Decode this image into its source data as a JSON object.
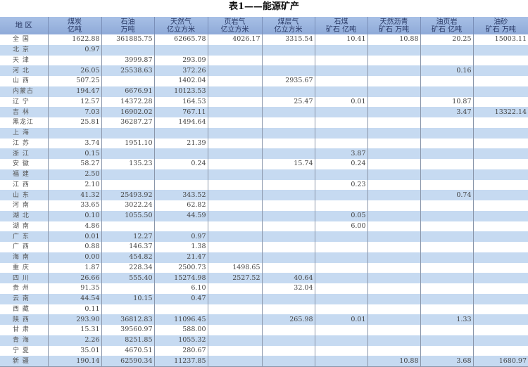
{
  "title": "表1——能源矿产",
  "table": {
    "headers": [
      {
        "line1": "地  区",
        "line2": ""
      },
      {
        "line1": "煤炭",
        "line2": "亿吨"
      },
      {
        "line1": "石油",
        "line2": "万吨"
      },
      {
        "line1": "天然气",
        "line2": "亿立方米"
      },
      {
        "line1": "页岩气",
        "line2": "亿立方米"
      },
      {
        "line1": "煤层气",
        "line2": "亿立方米"
      },
      {
        "line1": "石煤",
        "line2": "矿石 亿吨"
      },
      {
        "line1": "天然沥青",
        "line2": "矿石 万吨"
      },
      {
        "line1": "油页岩",
        "line2": "矿石 亿吨"
      },
      {
        "line1": "油砂",
        "line2": "矿石 万吨"
      }
    ],
    "rows": [
      [
        "全 国",
        "1622.88",
        "361885.75",
        "62665.78",
        "4026.17",
        "3315.54",
        "10.41",
        "10.88",
        "20.25",
        "15003.11"
      ],
      [
        "北 京",
        "0.97",
        "",
        "",
        "",
        "",
        "",
        "",
        "",
        ""
      ],
      [
        "天 津",
        "",
        "3999.87",
        "293.09",
        "",
        "",
        "",
        "",
        "",
        ""
      ],
      [
        "河 北",
        "26.05",
        "25538.63",
        "372.26",
        "",
        "",
        "",
        "",
        "0.16",
        ""
      ],
      [
        "山 西",
        "507.25",
        "",
        "1402.04",
        "",
        "2935.67",
        "",
        "",
        "",
        ""
      ],
      [
        "内蒙古",
        "194.47",
        "6676.91",
        "10123.53",
        "",
        "",
        "",
        "",
        "",
        ""
      ],
      [
        "辽 宁",
        "12.57",
        "14372.28",
        "164.53",
        "",
        "25.47",
        "0.01",
        "",
        "10.87",
        ""
      ],
      [
        "吉 林",
        "7.03",
        "16902.02",
        "767.11",
        "",
        "",
        "",
        "",
        "3.47",
        "13322.14"
      ],
      [
        "黑龙江",
        "25.81",
        "36287.27",
        "1494.64",
        "",
        "",
        "",
        "",
        "",
        ""
      ],
      [
        "上 海",
        "",
        "",
        "",
        "",
        "",
        "",
        "",
        "",
        ""
      ],
      [
        "江 苏",
        "3.74",
        "1951.10",
        "21.39",
        "",
        "",
        "",
        "",
        "",
        ""
      ],
      [
        "浙 江",
        "0.15",
        "",
        "",
        "",
        "",
        "3.87",
        "",
        "",
        ""
      ],
      [
        "安 徽",
        "58.27",
        "135.23",
        "0.24",
        "",
        "15.74",
        "0.24",
        "",
        "",
        ""
      ],
      [
        "福 建",
        "2.50",
        "",
        "",
        "",
        "",
        "",
        "",
        "",
        ""
      ],
      [
        "江 西",
        "2.10",
        "",
        "",
        "",
        "",
        "0.23",
        "",
        "",
        ""
      ],
      [
        "山 东",
        "41.32",
        "25493.92",
        "343.52",
        "",
        "",
        "",
        "",
        "0.74",
        ""
      ],
      [
        "河 南",
        "33.65",
        "3022.24",
        "62.82",
        "",
        "",
        "",
        "",
        "",
        ""
      ],
      [
        "湖 北",
        "0.10",
        "1055.50",
        "44.59",
        "",
        "",
        "0.05",
        "",
        "",
        ""
      ],
      [
        "湖 南",
        "4.86",
        "",
        "",
        "",
        "",
        "6.00",
        "",
        "",
        ""
      ],
      [
        "广 东",
        "0.01",
        "12.27",
        "0.97",
        "",
        "",
        "",
        "",
        "",
        ""
      ],
      [
        "广 西",
        "0.88",
        "146.37",
        "1.38",
        "",
        "",
        "",
        "",
        "",
        ""
      ],
      [
        "海 南",
        "0.00",
        "454.82",
        "21.47",
        "",
        "",
        "",
        "",
        "",
        ""
      ],
      [
        "重 庆",
        "1.87",
        "228.34",
        "2500.73",
        "1498.65",
        "",
        "",
        "",
        "",
        ""
      ],
      [
        "四 川",
        "26.66",
        "555.40",
        "15274.98",
        "2527.52",
        "40.64",
        "",
        "",
        "",
        ""
      ],
      [
        "贵 州",
        "91.35",
        "",
        "6.10",
        "",
        "32.04",
        "",
        "",
        "",
        ""
      ],
      [
        "云 南",
        "44.54",
        "10.15",
        "0.47",
        "",
        "",
        "",
        "",
        "",
        ""
      ],
      [
        "西 藏",
        "0.11",
        "",
        "",
        "",
        "",
        "",
        "",
        "",
        ""
      ],
      [
        "陕 西",
        "293.90",
        "36812.83",
        "11096.45",
        "",
        "265.98",
        "0.01",
        "",
        "1.33",
        ""
      ],
      [
        "甘 肃",
        "15.31",
        "39560.97",
        "588.00",
        "",
        "",
        "",
        "",
        "",
        ""
      ],
      [
        "青 海",
        "2.26",
        "8251.85",
        "1055.32",
        "",
        "",
        "",
        "",
        "",
        ""
      ],
      [
        "宁 夏",
        "35.01",
        "4670.51",
        "280.67",
        "",
        "",
        "",
        "",
        "",
        ""
      ],
      [
        "新 疆",
        "190.14",
        "62590.34",
        "11237.85",
        "",
        "",
        "",
        "10.88",
        "3.68",
        "1680.97"
      ]
    ]
  },
  "colors": {
    "header": "#9ab3dc",
    "stripe": "#c6daf1"
  }
}
